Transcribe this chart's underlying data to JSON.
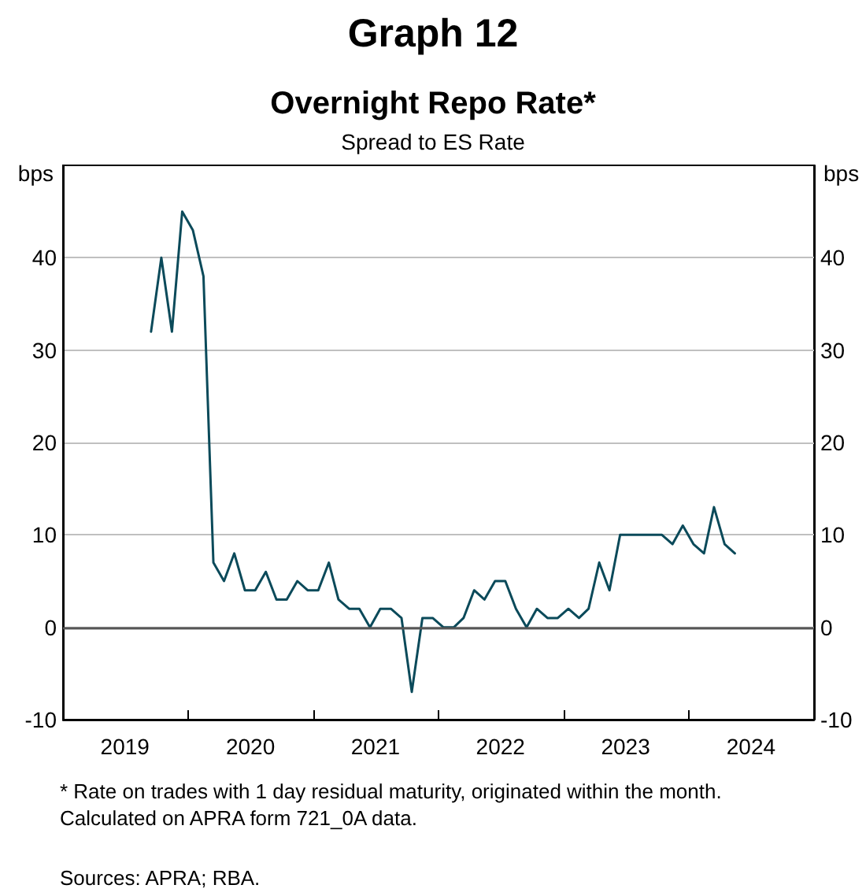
{
  "chart_data": {
    "type": "line",
    "title": "Graph 12",
    "subtitle": "Overnight Repo Rate*",
    "annotations": [
      "Spread to ES Rate",
      "* Rate on trades with 1 day residual maturity, originated within the month. Calculated on APRA form 721_0A data.",
      "Sources: APRA; RBA."
    ],
    "ylabel": "bps",
    "y2label": "bps",
    "x": [
      "2019-09-15",
      "2019-10-15",
      "2019-11-15",
      "2019-12-15",
      "2020-01-15",
      "2020-02-15",
      "2020-03-15",
      "2020-04-15",
      "2020-05-15",
      "2020-06-15",
      "2020-07-15",
      "2020-08-15",
      "2020-09-15",
      "2020-10-15",
      "2020-11-15",
      "2020-12-15",
      "2021-01-15",
      "2021-02-15",
      "2021-03-15",
      "2021-04-15",
      "2021-05-15",
      "2021-06-15",
      "2021-07-15",
      "2021-08-15",
      "2021-09-15",
      "2021-10-15",
      "2021-11-15",
      "2021-12-15",
      "2022-01-15",
      "2022-02-15",
      "2022-03-15",
      "2022-04-15",
      "2022-05-15",
      "2022-06-15",
      "2022-07-15",
      "2022-08-15",
      "2022-09-15",
      "2022-10-15",
      "2022-11-15",
      "2022-12-15",
      "2023-01-15",
      "2023-02-15",
      "2023-03-15",
      "2023-04-15",
      "2023-05-15",
      "2023-06-15",
      "2023-07-15",
      "2023-08-15",
      "2023-09-15",
      "2023-10-15",
      "2023-11-15",
      "2023-12-15",
      "2024-01-15",
      "2024-02-15",
      "2024-03-15",
      "2024-04-15",
      "2024-05-15"
    ],
    "series": [
      {
        "color": "#0b4a5a",
        "values": [
          32,
          40,
          32,
          45,
          43,
          38,
          7,
          5,
          8,
          4,
          4,
          6,
          3,
          3,
          5,
          4,
          4,
          7,
          3,
          2,
          2,
          0,
          2,
          2,
          1,
          -7,
          1,
          1,
          0,
          0,
          1,
          4,
          3,
          5,
          5,
          2,
          0,
          2,
          1,
          1,
          2,
          1,
          2,
          7,
          4,
          10,
          10,
          10,
          10,
          10,
          9,
          11,
          9,
          8,
          13,
          9,
          8
        ]
      }
    ],
    "xlim": [
      "2019-01",
      "2025-01"
    ],
    "xticks": [
      {
        "value": "2019-01",
        "label": null
      },
      {
        "value": "2019-07",
        "label": "2019"
      },
      {
        "value": "2020-01",
        "label": null
      },
      {
        "value": "2020-07",
        "label": "2020"
      },
      {
        "value": "2021-01",
        "label": null
      },
      {
        "value": "2021-07",
        "label": "2021"
      },
      {
        "value": "2022-01",
        "label": null
      },
      {
        "value": "2022-07",
        "label": "2022"
      },
      {
        "value": "2023-01",
        "label": null
      },
      {
        "value": "2023-07",
        "label": "2023"
      },
      {
        "value": "2024-01",
        "label": null
      },
      {
        "value": "2024-07",
        "label": "2024"
      },
      {
        "value": "2025-01",
        "label": null
      }
    ],
    "ylim": [
      -10,
      50
    ],
    "yticks": [
      -10,
      0,
      10,
      20,
      30,
      40
    ],
    "y2lim": [
      -10,
      50
    ],
    "y2ticks": [
      -10,
      0,
      10,
      20,
      30,
      40
    ],
    "ref_lines": [
      {
        "axis": "y",
        "value": 0,
        "color": "#555555"
      }
    ],
    "grid": "y",
    "marker": "none",
    "line_style": "solid"
  }
}
